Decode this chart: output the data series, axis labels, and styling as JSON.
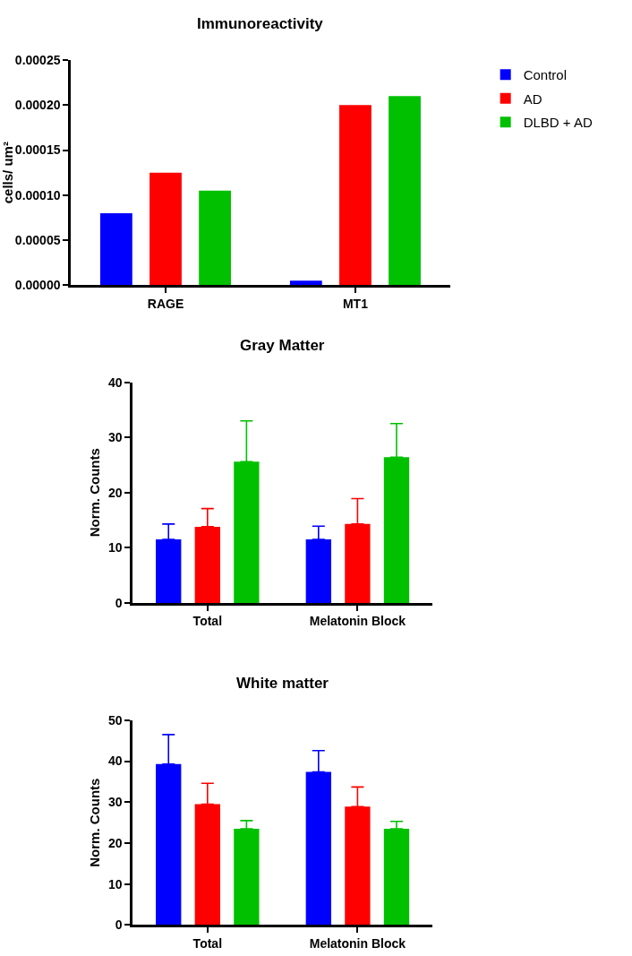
{
  "chart_data": [
    {
      "type": "bar",
      "title": "Immunoreactivity",
      "ylabel": "cells/ um²",
      "categories": [
        "RAGE",
        "MT1"
      ],
      "legend": "top right",
      "ylim": [
        0,
        0.00025
      ],
      "yticks": [
        {
          "value": 0,
          "label": "0.00000"
        },
        {
          "value": 5e-05,
          "label": "0.00005"
        },
        {
          "value": 0.0001,
          "label": "0.00010"
        },
        {
          "value": 0.00015,
          "label": "0.00015"
        },
        {
          "value": 0.0002,
          "label": "0.00020"
        },
        {
          "value": 0.00025,
          "label": "0.00025"
        }
      ],
      "series": [
        {
          "name": "Control",
          "color": "#0000ff",
          "values": [
            8e-05,
            5e-06
          ]
        },
        {
          "name": "AD",
          "color": "#ff0000",
          "values": [
            0.000125,
            0.0002
          ]
        },
        {
          "name": "DLBD + AD",
          "color": "#00c000",
          "values": [
            0.000105,
            0.00021
          ]
        }
      ]
    },
    {
      "type": "bar",
      "title": "Gray Matter",
      "ylabel": "Norm. Counts",
      "categories": [
        "Total",
        "Melatonin Block"
      ],
      "ylim": [
        0,
        40
      ],
      "yticks": [
        0,
        10,
        20,
        30,
        40
      ],
      "series": [
        {
          "color": "#0000ff",
          "values": [
            11.5,
            11.5
          ],
          "errors": [
            [
              11.5,
              14.3
            ],
            [
              11.5,
              13.9
            ]
          ]
        },
        {
          "color": "#ff0000",
          "values": [
            13.8,
            14.3
          ],
          "errors": [
            [
              13.8,
              17.1
            ],
            [
              14.3,
              18.9
            ]
          ]
        },
        {
          "color": "#00c000",
          "values": [
            25.6,
            26.4
          ],
          "errors": [
            [
              25.6,
              33.0
            ],
            [
              26.4,
              32.5
            ]
          ]
        }
      ]
    },
    {
      "type": "bar",
      "title": "White matter",
      "ylabel": "Norm. Counts",
      "categories": [
        "Total",
        "Melatonin Block"
      ],
      "ylim": [
        0,
        50
      ],
      "yticks": [
        0,
        10,
        20,
        30,
        40,
        50
      ],
      "series": [
        {
          "color": "#0000ff",
          "values": [
            39.3,
            37.4
          ],
          "errors": [
            [
              39.3,
              46.5
            ],
            [
              37.4,
              42.6
            ]
          ]
        },
        {
          "color": "#ff0000",
          "values": [
            29.5,
            28.9
          ],
          "errors": [
            [
              29.5,
              34.6
            ],
            [
              28.9,
              33.7
            ]
          ]
        },
        {
          "color": "#00c000",
          "values": [
            23.5,
            23.5
          ],
          "errors": [
            [
              23.5,
              25.5
            ],
            [
              23.5,
              25.3
            ]
          ]
        }
      ]
    }
  ]
}
